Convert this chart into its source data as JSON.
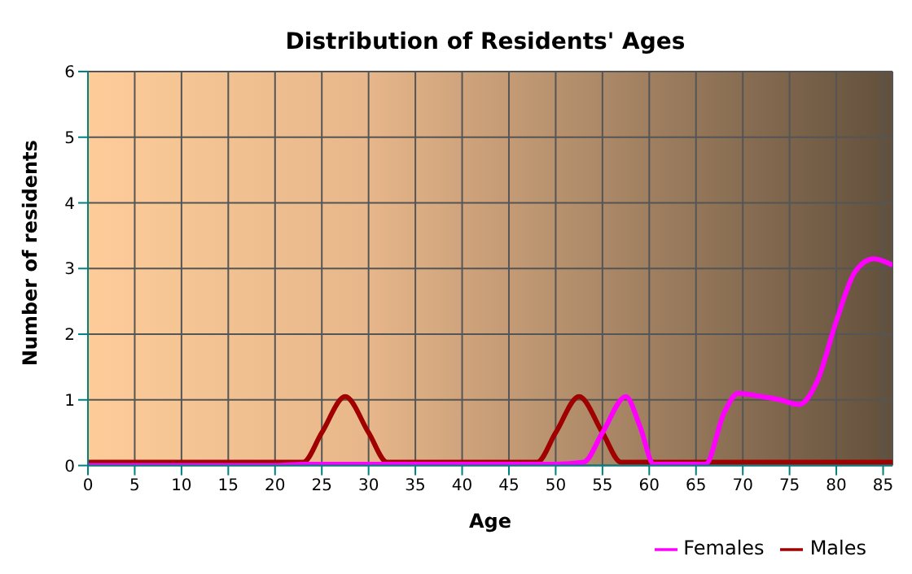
{
  "chart_data": {
    "type": "line",
    "title": "Distribution of Residents' Ages",
    "xlabel": "Age",
    "ylabel": "Number of residents",
    "xlim": [
      0,
      86
    ],
    "xticks": [
      0,
      5,
      10,
      15,
      20,
      25,
      30,
      35,
      40,
      45,
      50,
      55,
      60,
      65,
      70,
      75,
      80,
      85
    ],
    "ylim": [
      0,
      6
    ],
    "yticks": [
      0,
      1,
      2,
      3,
      4,
      5,
      6
    ],
    "grid": true,
    "legend": "bottom right",
    "marker": "none",
    "line_style": "solid",
    "series": [
      {
        "name": "Males",
        "color": "#a00000",
        "x": [
          0,
          10,
          20,
          23,
          25,
          27.5,
          30,
          32,
          35,
          40,
          45,
          48,
          50,
          52.5,
          55,
          57,
          60,
          70,
          80,
          86
        ],
        "values": [
          0.05,
          0.05,
          0.05,
          0.05,
          0.5,
          1.05,
          0.5,
          0.05,
          0.05,
          0.05,
          0.05,
          0.05,
          0.5,
          1.05,
          0.5,
          0.05,
          0.05,
          0.05,
          0.05,
          0.05
        ]
      },
      {
        "name": "Females",
        "color": "#ff00ff",
        "x": [
          0,
          20,
          23,
          32,
          40,
          45,
          50,
          53,
          55,
          57.5,
          59,
          60.5,
          63,
          66,
          68,
          69.5,
          72,
          74,
          76,
          78,
          80,
          82,
          84,
          86
        ],
        "values": [
          0,
          0,
          0.02,
          0.02,
          0.02,
          0.02,
          0.02,
          0.05,
          0.5,
          1.05,
          0.6,
          0.02,
          0.02,
          0.02,
          0.8,
          1.1,
          1.05,
          1.0,
          0.93,
          1.3,
          2.2,
          2.95,
          3.15,
          3.05
        ]
      }
    ]
  }
}
